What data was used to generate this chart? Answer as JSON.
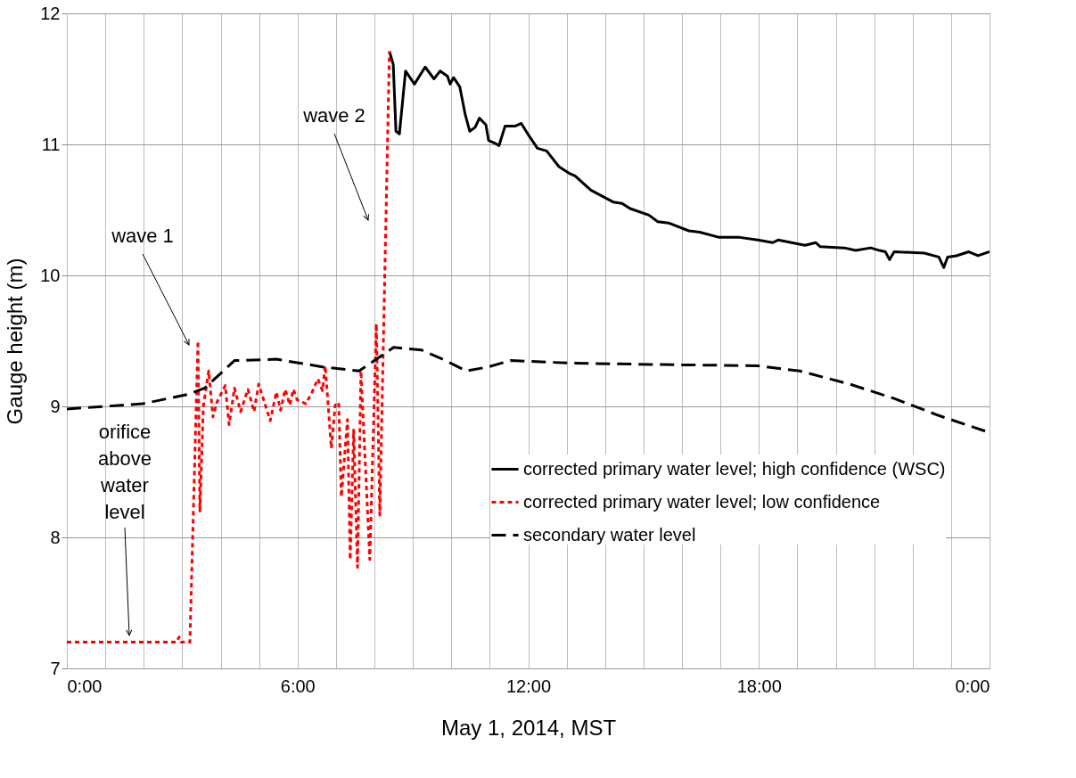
{
  "chart_data": {
    "type": "line",
    "xlabel": "May 1, 2014, MST",
    "ylabel": "Gauge height  (m)",
    "xlim": [
      0,
      24
    ],
    "ylim": [
      7,
      12
    ],
    "xticks": [
      {
        "value": 0,
        "label": "0:00"
      },
      {
        "value": 1,
        "label": null
      },
      {
        "value": 2,
        "label": null
      },
      {
        "value": 3,
        "label": null
      },
      {
        "value": 4,
        "label": null
      },
      {
        "value": 5,
        "label": null
      },
      {
        "value": 6,
        "label": "6:00"
      },
      {
        "value": 7,
        "label": null
      },
      {
        "value": 8,
        "label": null
      },
      {
        "value": 9,
        "label": null
      },
      {
        "value": 10,
        "label": null
      },
      {
        "value": 11,
        "label": null
      },
      {
        "value": 12,
        "label": "12:00"
      },
      {
        "value": 13,
        "label": null
      },
      {
        "value": 14,
        "label": null
      },
      {
        "value": 15,
        "label": null
      },
      {
        "value": 16,
        "label": null
      },
      {
        "value": 17,
        "label": null
      },
      {
        "value": 18,
        "label": "18:00"
      },
      {
        "value": 19,
        "label": null
      },
      {
        "value": 20,
        "label": null
      },
      {
        "value": 21,
        "label": null
      },
      {
        "value": 22,
        "label": null
      },
      {
        "value": 23,
        "label": null
      },
      {
        "value": 24,
        "label": "0:00"
      }
    ],
    "yticks": [
      7,
      8,
      9,
      10,
      11,
      12
    ],
    "grid": true,
    "legend": "right",
    "marker": "none",
    "series": [
      {
        "name": "corrected primary water level; high confidence (WSC)",
        "color": "#000000",
        "line_style": "solid",
        "x": [
          8.39,
          8.49,
          8.56,
          8.65,
          8.81,
          9.04,
          9.32,
          9.55,
          9.71,
          9.9,
          9.97,
          10.06,
          10.22,
          10.36,
          10.48,
          10.62,
          10.73,
          10.9,
          10.97,
          11.13,
          11.24,
          11.4,
          11.67,
          11.82,
          12.01,
          12.24,
          12.48,
          12.8,
          13.06,
          13.22,
          13.63,
          14.21,
          14.44,
          14.65,
          15.14,
          15.37,
          15.65,
          16.18,
          16.46,
          16.97,
          17.5,
          17.97,
          18.36,
          18.5,
          19.2,
          19.48,
          19.59,
          20.22,
          20.52,
          20.91,
          21.14,
          21.29,
          21.4,
          21.52,
          22.3,
          22.68,
          22.81,
          22.91,
          23.14,
          23.46,
          23.7,
          24
        ],
        "values": [
          11.71,
          11.61,
          11.1,
          11.08,
          11.56,
          11.46,
          11.59,
          11.5,
          11.56,
          11.52,
          11.46,
          11.51,
          11.44,
          11.23,
          11.1,
          11.13,
          11.2,
          11.15,
          11.03,
          11.01,
          10.99,
          11.14,
          11.14,
          11.16,
          11.07,
          10.97,
          10.95,
          10.83,
          10.78,
          10.76,
          10.65,
          10.56,
          10.55,
          10.51,
          10.46,
          10.41,
          10.4,
          10.34,
          10.33,
          10.29,
          10.29,
          10.27,
          10.25,
          10.27,
          10.23,
          10.25,
          10.22,
          10.21,
          10.19,
          10.21,
          10.19,
          10.18,
          10.12,
          10.18,
          10.17,
          10.14,
          10.06,
          10.14,
          10.15,
          10.18,
          10.15,
          10.18
        ]
      },
      {
        "name": "corrected primary water level; low confidence",
        "color": "#ff0000",
        "line_style": "dotted",
        "x": [
          0,
          2.85,
          2.92,
          2.97,
          3.2,
          3.41,
          3.46,
          3.55,
          3.69,
          3.8,
          3.9,
          4.12,
          4.22,
          4.36,
          4.52,
          4.71,
          4.87,
          4.99,
          5.29,
          5.45,
          5.56,
          5.68,
          5.8,
          5.89,
          5.99,
          6.22,
          6.38,
          6.53,
          6.65,
          6.72,
          6.88,
          6.98,
          7.07,
          7.14,
          7.3,
          7.37,
          7.46,
          7.56,
          7.65,
          7.88,
          8.05,
          8.14,
          8.39
        ],
        "values": [
          7.2,
          7.2,
          7.24,
          7.2,
          7.2,
          9.5,
          8.2,
          9.0,
          9.27,
          8.92,
          9.03,
          9.16,
          8.86,
          9.14,
          8.96,
          9.13,
          8.96,
          9.17,
          8.89,
          9.11,
          8.97,
          9.13,
          9.01,
          9.13,
          9.05,
          9.02,
          9.11,
          9.21,
          9.12,
          9.31,
          8.68,
          9.01,
          9.03,
          8.31,
          8.9,
          7.83,
          8.82,
          7.77,
          9.27,
          7.83,
          9.63,
          8.17,
          11.71
        ]
      },
      {
        "name": "secondary water level",
        "color": "#000000",
        "line_style": "dashed",
        "x": [
          0,
          1.97,
          3.13,
          3.59,
          4.36,
          5.45,
          6.68,
          7.6,
          8.5,
          9.23,
          9.78,
          10.39,
          10.94,
          11.55,
          13.1,
          15.2,
          17.97,
          19.06,
          20.36,
          21.52,
          22.68,
          24
        ],
        "values": [
          8.98,
          9.02,
          9.09,
          9.14,
          9.35,
          9.36,
          9.3,
          9.27,
          9.45,
          9.43,
          9.36,
          9.27,
          9.3,
          9.35,
          9.33,
          9.32,
          9.31,
          9.27,
          9.17,
          9.06,
          8.93,
          8.8
        ]
      }
    ],
    "annotations": [
      "wave 1",
      "wave 2",
      "orifice above water level"
    ]
  }
}
